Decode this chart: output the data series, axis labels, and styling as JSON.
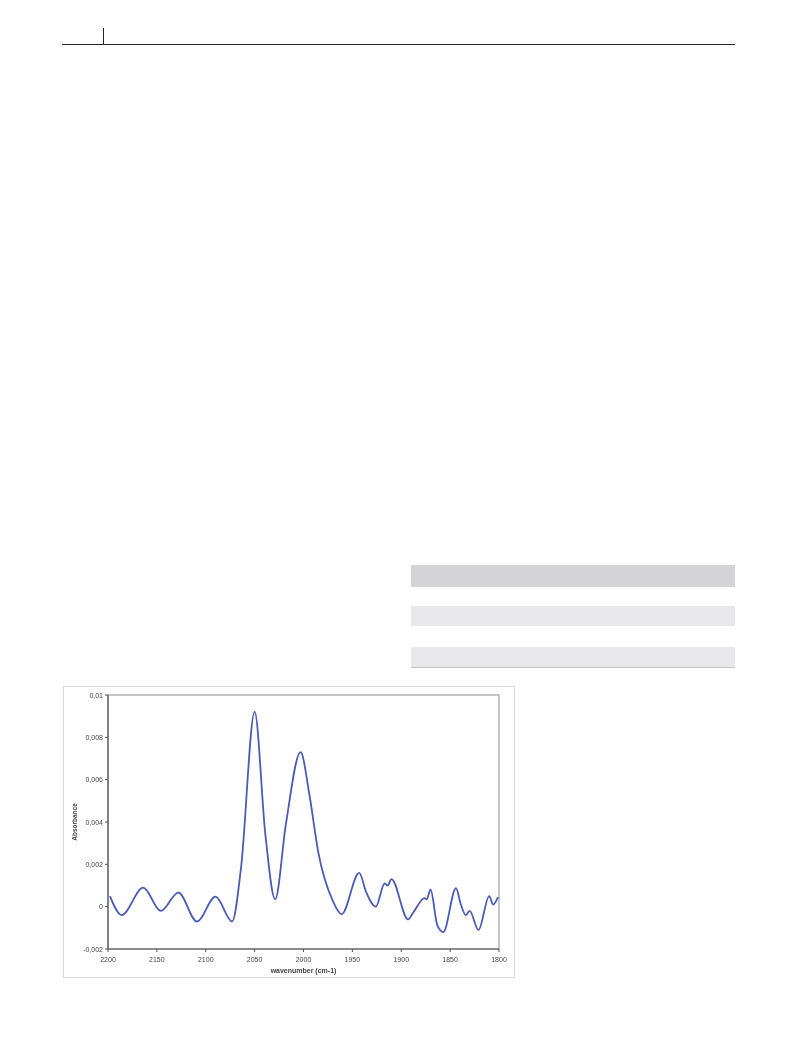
{
  "chart_data": {
    "type": "line",
    "xlabel": "wavenumber (cm-1)",
    "ylabel": "Absorbance",
    "xlim": [
      2200,
      1800
    ],
    "xticks": [
      2200,
      2150,
      2100,
      2050,
      2000,
      1950,
      1900,
      1850,
      1800
    ],
    "ylim": [
      -0.002,
      0.01
    ],
    "yticks": [
      {
        "value": -0.002,
        "label": "-0,002"
      },
      {
        "value": 0,
        "label": "0"
      },
      {
        "value": 0.002,
        "label": "0,002"
      },
      {
        "value": 0.004,
        "label": "0,004"
      },
      {
        "value": 0.006,
        "label": "0,006"
      },
      {
        "value": 0.008,
        "label": "0,008"
      },
      {
        "value": 0.01,
        "label": "0,01"
      }
    ],
    "marker": "none",
    "line_style": "solid",
    "series": [
      {
        "color": "#4a5cb8",
        "x": [
          2198,
          2186,
          2164,
          2146,
          2128,
          2109,
          2090,
          2073,
          2064,
          2050,
          2039,
          2029,
          2018,
          2003,
          1994,
          1985,
          1970,
          1961,
          1943,
          1936,
          1926,
          1917,
          1914,
          1910,
          1893,
          1888,
          1876,
          1874,
          1870,
          1863,
          1857,
          1844,
          1839,
          1834,
          1830,
          1821,
          1810,
          1806,
          1801
        ],
        "values": [
          0.0005,
          -0.0004,
          0.0009,
          -0.0002,
          0.00066,
          -0.0007,
          0.00047,
          -0.0007,
          0.0018,
          0.0092,
          0.0034,
          0.00035,
          0.0039,
          0.0073,
          0.0053,
          0.0026,
          0.00027,
          -0.00036,
          0.0016,
          0.0007,
          0,
          0.0011,
          0.001,
          0.0013,
          -0.0006,
          -0.0003,
          0.0004,
          0.00035,
          0.0008,
          -0.0009,
          -0.0012,
          0.00087,
          0.0001,
          -0.0004,
          -0.0002,
          -0.0011,
          0.0005,
          0.0001,
          0.00045
        ]
      }
    ]
  }
}
